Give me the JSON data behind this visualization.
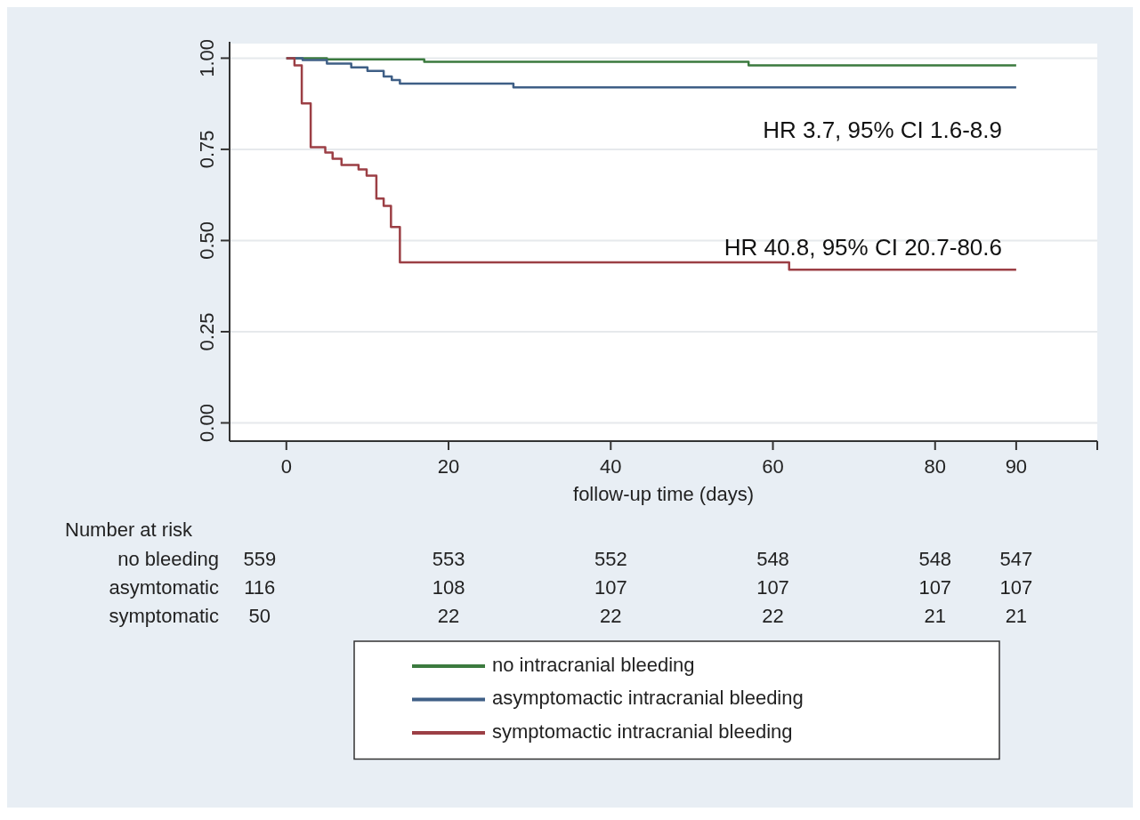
{
  "chart_data": {
    "type": "step",
    "xlabel": "follow-up time (days)",
    "xlim": [
      -7,
      100
    ],
    "xticks": [
      0,
      20,
      40,
      60,
      80,
      90,
      {
        "value": 100,
        "label": null
      }
    ],
    "ylim": [
      -0.05,
      1.04
    ],
    "yticks": [
      {
        "value": 0,
        "label": "0.00"
      },
      {
        "value": 0.25,
        "label": "0.25"
      },
      {
        "value": 0.5,
        "label": "0.50"
      },
      {
        "value": 0.75,
        "label": "0.75"
      },
      {
        "value": 1,
        "label": "1.00"
      }
    ],
    "grid": "y",
    "legend": "bottom",
    "marker": "none",
    "line_style": "solid",
    "series": [
      {
        "name": "no intracranial bleeding",
        "color": "#3b7a3e",
        "x": [
          0,
          5,
          17,
          57,
          90
        ],
        "values": [
          1,
          0.997,
          0.99,
          0.98,
          0.98
        ]
      },
      {
        "name": "asymptomactic intracranial bleeding",
        "color": "#3f5f86",
        "x": [
          0,
          2,
          5,
          8,
          10,
          12,
          13,
          14,
          28,
          90
        ],
        "values": [
          1,
          0.995,
          0.985,
          0.975,
          0.965,
          0.95,
          0.94,
          0.93,
          0.92,
          0.92
        ]
      },
      {
        "name": "symptomactic intracranial bleeding",
        "color": "#9c3f45",
        "x": [
          0,
          1,
          1.9,
          3,
          4.8,
          5.7,
          6.8,
          8.9,
          9.9,
          11.1,
          12,
          12.9,
          14,
          62,
          90
        ],
        "values": [
          1,
          0.98,
          0.876,
          0.756,
          0.741,
          0.724,
          0.707,
          0.695,
          0.678,
          0.615,
          0.595,
          0.537,
          0.44,
          0.42,
          0.42
        ]
      }
    ],
    "annotations": [
      "HR 3.7, 95% CI 1.6-8.9",
      "HR 40.8, 95% CI 20.7-80.6",
      "Number at risk",
      "no bleeding",
      "559",
      "553",
      "552",
      "548",
      "548",
      "547",
      "asymtomatic",
      "116",
      "108",
      "107",
      "107",
      "107",
      "107",
      "symptomatic",
      "50",
      "22",
      "22",
      "22",
      "21",
      "21"
    ]
  }
}
